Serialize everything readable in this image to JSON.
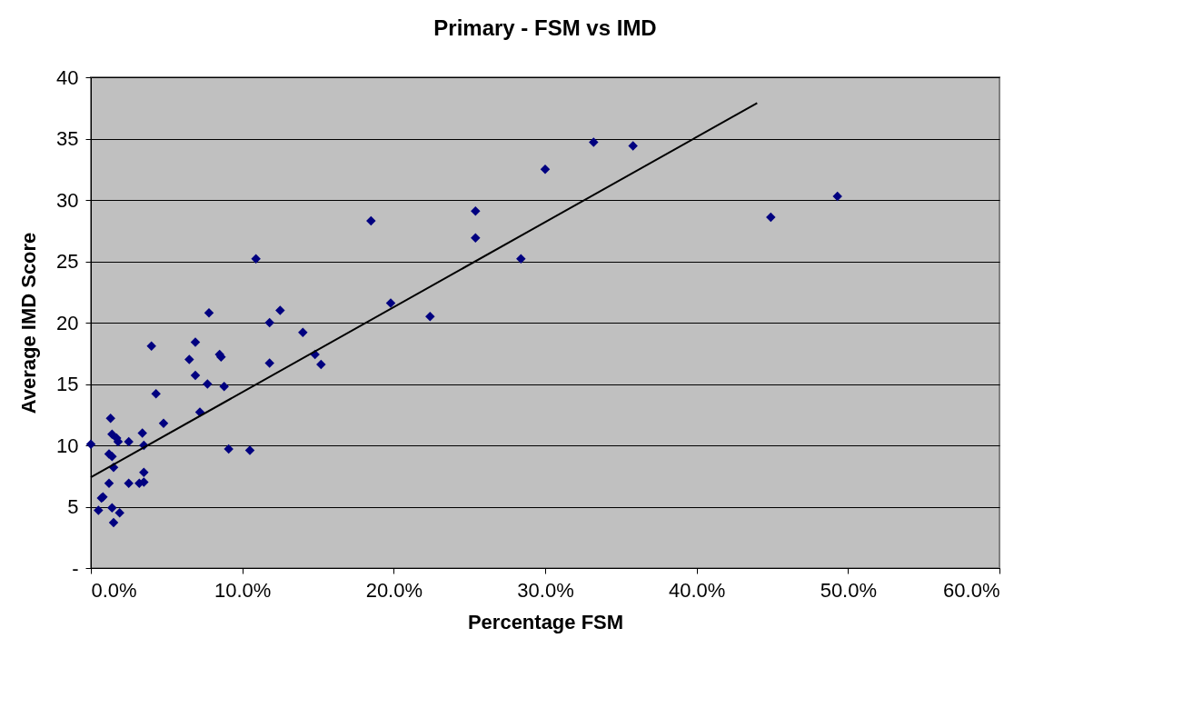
{
  "chart_data": {
    "type": "scatter",
    "title": "Primary - FSM vs IMD",
    "xlabel": "Percentage FSM",
    "ylabel": "Average IMD Score",
    "xlim": [
      0,
      60
    ],
    "ylim": [
      0,
      40
    ],
    "xticks": [
      {
        "value": 0,
        "label": "0.0%"
      },
      {
        "value": 10,
        "label": "10.0%"
      },
      {
        "value": 20,
        "label": "20.0%"
      },
      {
        "value": 30,
        "label": "30.0%"
      },
      {
        "value": 40,
        "label": "40.0%"
      },
      {
        "value": 50,
        "label": "50.0%"
      },
      {
        "value": 60,
        "label": "60.0%"
      }
    ],
    "yticks": [
      {
        "value": 0,
        "label": "-"
      },
      5,
      10,
      15,
      20,
      25,
      30,
      35,
      40
    ],
    "grid": "y",
    "marker": "diamond",
    "series": [
      {
        "color": "#000080",
        "x": [
          0.0,
          0.5,
          0.7,
          0.8,
          1.2,
          1.2,
          1.4,
          1.3,
          1.4,
          1.4,
          1.5,
          1.5,
          1.7,
          1.8,
          1.9,
          2.5,
          2.5,
          3.2,
          3.4,
          3.5,
          3.5,
          3.5,
          4.0,
          4.3,
          4.8,
          6.5,
          6.9,
          6.9,
          7.2,
          7.7,
          7.8,
          8.5,
          8.6,
          8.8,
          9.1,
          10.5,
          10.9,
          11.8,
          12.5,
          11.8,
          14.0,
          14.8,
          15.2,
          18.5,
          19.8,
          22.4,
          25.4,
          25.4,
          28.4,
          30.0,
          33.2,
          35.8,
          44.9,
          49.3
        ],
        "values": [
          10.1,
          4.7,
          5.7,
          5.8,
          6.9,
          9.3,
          9.1,
          12.2,
          10.9,
          4.9,
          8.2,
          3.7,
          10.6,
          10.3,
          4.5,
          10.3,
          6.9,
          6.9,
          11.0,
          10.0,
          7.8,
          7.0,
          18.1,
          14.2,
          11.8,
          17.0,
          18.4,
          15.7,
          12.7,
          15.0,
          20.8,
          17.4,
          17.2,
          14.8,
          9.7,
          9.6,
          25.2,
          20.0,
          21.0,
          16.7,
          19.2,
          17.4,
          16.6,
          28.3,
          21.6,
          20.5,
          29.1,
          26.9,
          25.2,
          32.5,
          34.7,
          34.4,
          28.6,
          30.3
        ]
      },
      {
        "type": "line",
        "color": "#000000",
        "marker": "none",
        "line_style": "solid",
        "x": [
          0.0,
          44.0
        ],
        "values": [
          7.4,
          37.9
        ]
      }
    ]
  }
}
